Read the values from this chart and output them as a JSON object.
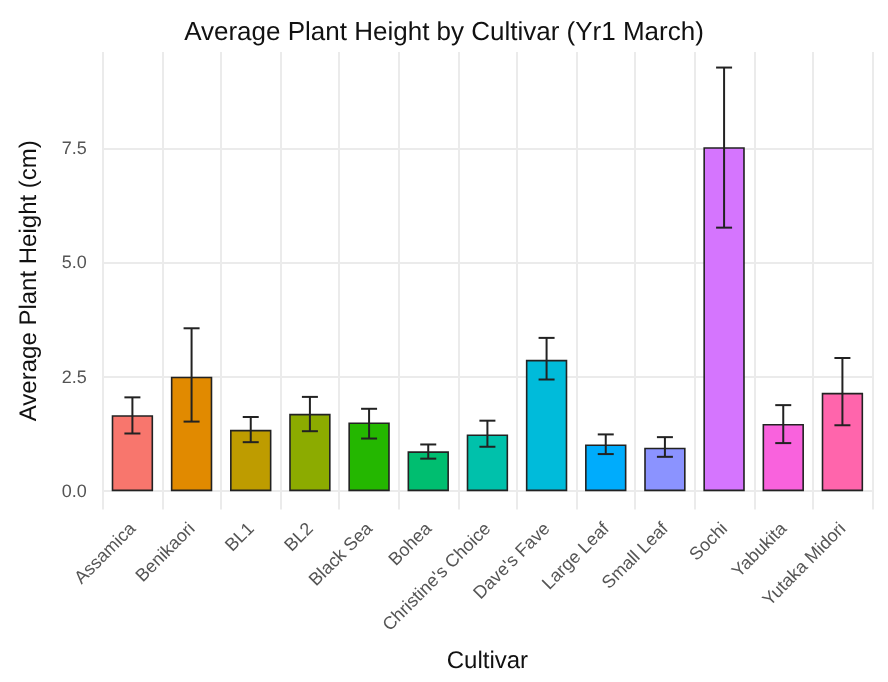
{
  "chart_data": {
    "type": "bar",
    "title": "Average Plant Height by Cultivar (Yr1 March)",
    "xlabel": "Cultivar",
    "ylabel": "Average Plant Height (cm)",
    "categories": [
      "Assamica",
      "Benikaori",
      "BL1",
      "BL2",
      "Black Sea",
      "Bohea",
      "Christine's Choice",
      "Dave's Fave",
      "Large Leaf",
      "Small Leaf",
      "Sochi",
      "Yabukita",
      "Yutaka Midori"
    ],
    "values": [
      1.66,
      2.5,
      1.34,
      1.69,
      1.5,
      0.87,
      1.24,
      2.87,
      1.02,
      0.95,
      7.52,
      1.47,
      2.15
    ],
    "colors": [
      "#f8766d",
      "#e18a00",
      "#be9c00",
      "#8cab00",
      "#24b700",
      "#00be70",
      "#00c1ab",
      "#00bbda",
      "#00acfc",
      "#8b93ff",
      "#d575fe",
      "#f962dd",
      "#ff65ac"
    ],
    "errors": [
      [
        1.26,
        2.05
      ],
      [
        1.52,
        3.56
      ],
      [
        1.07,
        1.62
      ],
      [
        1.31,
        2.06
      ],
      [
        1.15,
        1.8
      ],
      [
        0.71,
        1.02
      ],
      [
        0.97,
        1.54
      ],
      [
        2.44,
        3.35
      ],
      [
        0.81,
        1.24
      ],
      [
        0.75,
        1.18
      ],
      [
        5.76,
        9.26
      ],
      [
        1.05,
        1.88
      ],
      [
        1.44,
        2.91
      ]
    ],
    "ylim": [
      -0.4,
      9.6
    ],
    "yticks": [
      {
        "value": 0,
        "label": "0.0"
      },
      {
        "value": 2.5,
        "label": "2.5"
      },
      {
        "value": 5,
        "label": "5.0"
      },
      {
        "value": 7.5,
        "label": "7.5"
      }
    ],
    "grid": true
  }
}
